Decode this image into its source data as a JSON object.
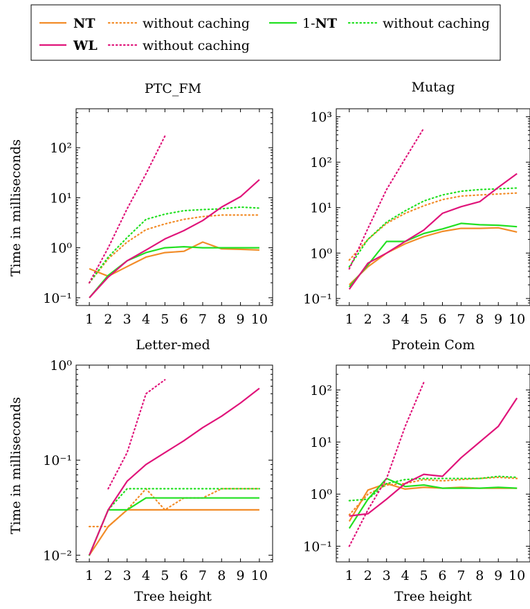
{
  "legend": {
    "entries": [
      {
        "label": "NT",
        "bold": true,
        "style": "solid",
        "color": "#f28c28"
      },
      {
        "label": "without caching",
        "bold": false,
        "style": "dotted",
        "color": "#f28c28"
      },
      {
        "label": "1-NT",
        "bold": false,
        "prefix": "1-",
        "bold_part": "NT",
        "style": "solid",
        "color": "#22e022"
      },
      {
        "label": "without caching",
        "bold": false,
        "style": "dotted",
        "color": "#22e022"
      },
      {
        "label": "WL",
        "bold": true,
        "style": "solid",
        "color": "#e0147a"
      },
      {
        "label": "without caching",
        "bold": false,
        "style": "dotted",
        "color": "#e0147a"
      }
    ]
  },
  "colors": {
    "NT": "#f28c28",
    "one_NT": "#22e022",
    "WL": "#e0147a"
  },
  "chart_data": [
    {
      "type": "line",
      "title": "PTC_FM",
      "xlabel": "",
      "ylabel": "Time in milliseconds",
      "yscale": "log",
      "ylim": [
        0.07,
        600
      ],
      "yticks": [
        {
          "value": 0.1,
          "label": "10⁻¹"
        },
        {
          "value": 1,
          "label": "10⁰"
        },
        {
          "value": 10,
          "label": "10¹"
        },
        {
          "value": 100,
          "label": "10²"
        }
      ],
      "xlim": [
        0.3,
        10.7
      ],
      "x": [
        1,
        2,
        3,
        4,
        5,
        6,
        7,
        8,
        9,
        10
      ],
      "series": [
        {
          "name": "NT",
          "style": "solid",
          "color": "#f28c28",
          "x": [
            1,
            2,
            3,
            4,
            5,
            6,
            7,
            8,
            9,
            10
          ],
          "values": [
            0.38,
            0.27,
            0.42,
            0.65,
            0.8,
            0.85,
            1.3,
            0.95,
            0.93,
            0.9
          ]
        },
        {
          "name": "without caching",
          "style": "dotted",
          "color": "#f28c28",
          "x": [
            1,
            2,
            3,
            4,
            5,
            6,
            7,
            8,
            9,
            10
          ],
          "values": [
            0.2,
            0.6,
            1.3,
            2.3,
            3.0,
            3.7,
            4.2,
            4.5,
            4.5,
            4.5
          ]
        },
        {
          "name": "1-NT",
          "style": "solid",
          "color": "#22e022",
          "x": [
            1,
            2,
            3,
            4,
            5,
            6,
            7,
            8,
            9,
            10
          ],
          "values": [
            0.1,
            0.28,
            0.55,
            0.8,
            1.0,
            1.05,
            1.0,
            1.0,
            1.0,
            1.0
          ]
        },
        {
          "name": "without caching",
          "style": "dotted",
          "color": "#22e022",
          "x": [
            1,
            2,
            3,
            4,
            5,
            6,
            7,
            8,
            9,
            10
          ],
          "values": [
            0.2,
            0.65,
            1.6,
            3.7,
            4.7,
            5.5,
            5.8,
            6.0,
            6.5,
            6.2
          ]
        },
        {
          "name": "WL",
          "style": "solid",
          "color": "#e0147a",
          "x": [
            1,
            2,
            3,
            4,
            5,
            6,
            7,
            8,
            9,
            10
          ],
          "values": [
            0.1,
            0.26,
            0.55,
            0.9,
            1.5,
            2.2,
            3.5,
            6.5,
            10.5,
            23
          ]
        },
        {
          "name": "without caching",
          "style": "dotted",
          "color": "#e0147a",
          "x": [
            1,
            2,
            3,
            4,
            5
          ],
          "values": [
            0.2,
            1.0,
            6.0,
            30,
            170
          ]
        }
      ]
    },
    {
      "type": "line",
      "title": "Mutag",
      "xlabel": "",
      "ylabel": "",
      "yscale": "log",
      "ylim": [
        0.07,
        1500
      ],
      "yticks": [
        {
          "value": 0.1,
          "label": "10⁻¹"
        },
        {
          "value": 1,
          "label": "10⁰"
        },
        {
          "value": 10,
          "label": "10¹"
        },
        {
          "value": 100,
          "label": "10²"
        },
        {
          "value": 1000,
          "label": "10³"
        }
      ],
      "xlim": [
        0.3,
        10.7
      ],
      "x": [
        1,
        2,
        3,
        4,
        5,
        6,
        7,
        8,
        9,
        10
      ],
      "series": [
        {
          "name": "NT",
          "style": "solid",
          "color": "#f28c28",
          "x": [
            1,
            2,
            3,
            4,
            5,
            6,
            7,
            8,
            9,
            10
          ],
          "values": [
            0.2,
            0.5,
            1.0,
            1.6,
            2.3,
            3.0,
            3.5,
            3.5,
            3.6,
            2.9
          ]
        },
        {
          "name": "without caching",
          "style": "dotted",
          "color": "#f28c28",
          "x": [
            1,
            2,
            3,
            4,
            5,
            6,
            7,
            8,
            9,
            10
          ],
          "values": [
            0.7,
            2.0,
            4.5,
            7.5,
            11,
            15,
            18,
            19,
            20,
            21
          ]
        },
        {
          "name": "1-NT",
          "style": "solid",
          "color": "#22e022",
          "x": [
            1,
            2,
            3,
            4,
            5,
            6,
            7,
            8,
            9,
            10
          ],
          "values": [
            0.18,
            0.55,
            1.8,
            1.8,
            2.7,
            3.4,
            4.5,
            4.2,
            4.1,
            3.8
          ]
        },
        {
          "name": "without caching",
          "style": "dotted",
          "color": "#22e022",
          "x": [
            1,
            2,
            3,
            4,
            5,
            6,
            7,
            8,
            9,
            10
          ],
          "values": [
            0.5,
            2.0,
            4.8,
            8.5,
            14,
            19,
            23,
            25,
            26,
            27
          ]
        },
        {
          "name": "WL",
          "style": "solid",
          "color": "#e0147a",
          "x": [
            1,
            2,
            3,
            4,
            5,
            6,
            7,
            8,
            9,
            10
          ],
          "values": [
            0.16,
            0.6,
            1.0,
            1.8,
            3.2,
            7.5,
            10.5,
            13.5,
            28,
            56
          ]
        },
        {
          "name": "without caching",
          "style": "dotted",
          "color": "#e0147a",
          "x": [
            1,
            2,
            3,
            4,
            5
          ],
          "values": [
            0.45,
            3.5,
            25,
            120,
            560
          ]
        }
      ]
    },
    {
      "type": "line",
      "title": "Letter-med",
      "xlabel": "Tree height",
      "ylabel": "Time in milliseconds",
      "yscale": "log",
      "ylim": [
        0.0085,
        1.0
      ],
      "yticks": [
        {
          "value": 0.01,
          "label": "10⁻²"
        },
        {
          "value": 0.1,
          "label": "10⁻¹"
        },
        {
          "value": 1,
          "label": "10⁰"
        }
      ],
      "xlim": [
        0.3,
        10.7
      ],
      "x": [
        1,
        2,
        3,
        4,
        5,
        6,
        7,
        8,
        9,
        10
      ],
      "series": [
        {
          "name": "NT",
          "style": "solid",
          "color": "#f28c28",
          "x": [
            1,
            2,
            3,
            4,
            5,
            6,
            7,
            8,
            9,
            10
          ],
          "values": [
            0.01,
            0.02,
            0.03,
            0.03,
            0.03,
            0.03,
            0.03,
            0.03,
            0.03,
            0.03
          ]
        },
        {
          "name": "without caching",
          "style": "dotted",
          "color": "#f28c28",
          "x": [
            1,
            2,
            3,
            4,
            5,
            6,
            7,
            8,
            9,
            10
          ],
          "values": [
            0.02,
            0.02,
            0.03,
            0.05,
            0.03,
            0.04,
            0.04,
            0.05,
            0.05,
            0.05
          ]
        },
        {
          "name": "1-NT",
          "style": "solid",
          "color": "#22e022",
          "x": [
            1,
            2,
            3,
            4,
            5,
            6,
            7,
            8,
            9,
            10
          ],
          "values": [
            0.01,
            0.03,
            0.03,
            0.04,
            0.04,
            0.04,
            0.04,
            0.04,
            0.04,
            0.04
          ]
        },
        {
          "name": "without caching",
          "style": "dotted",
          "color": "#22e022",
          "x": [
            1,
            2,
            3,
            4,
            5,
            6,
            7,
            8,
            9,
            10
          ],
          "values": [
            0.01,
            0.03,
            0.05,
            0.05,
            0.05,
            0.05,
            0.05,
            0.05,
            0.05,
            0.05
          ]
        },
        {
          "name": "WL",
          "style": "solid",
          "color": "#e0147a",
          "x": [
            1,
            2,
            3,
            4,
            5,
            6,
            7,
            8,
            9,
            10
          ],
          "values": [
            0.01,
            0.03,
            0.06,
            0.09,
            0.12,
            0.16,
            0.22,
            0.29,
            0.4,
            0.57
          ]
        },
        {
          "name": "without caching",
          "style": "dotted",
          "color": "#e0147a",
          "x": [
            2,
            3,
            4,
            5
          ],
          "values": [
            0.05,
            0.12,
            0.5,
            0.7
          ]
        }
      ]
    },
    {
      "type": "line",
      "title": "Protein Com",
      "xlabel": "Tree height",
      "ylabel": "",
      "yscale": "log",
      "ylim": [
        0.05,
        300
      ],
      "yticks": [
        {
          "value": 0.1,
          "label": "10⁻¹"
        },
        {
          "value": 1,
          "label": "10⁰"
        },
        {
          "value": 10,
          "label": "10¹"
        },
        {
          "value": 100,
          "label": "10²"
        }
      ],
      "xlim": [
        0.3,
        10.7
      ],
      "x": [
        1,
        2,
        3,
        4,
        5,
        6,
        7,
        8,
        9,
        10
      ],
      "series": [
        {
          "name": "NT",
          "style": "solid",
          "color": "#f28c28",
          "x": [
            1,
            2,
            3,
            4,
            5,
            6,
            7,
            8,
            9,
            10
          ],
          "values": [
            0.3,
            1.2,
            1.6,
            1.25,
            1.35,
            1.3,
            1.35,
            1.3,
            1.3,
            1.3
          ]
        },
        {
          "name": "without caching",
          "style": "dotted",
          "color": "#f28c28",
          "x": [
            1,
            2,
            3,
            4,
            5,
            6,
            7,
            8,
            9,
            10
          ],
          "values": [
            0.4,
            1.0,
            1.5,
            1.6,
            1.9,
            1.8,
            1.9,
            2.0,
            2.1,
            2.0
          ]
        },
        {
          "name": "1-NT",
          "style": "solid",
          "color": "#22e022",
          "x": [
            1,
            2,
            3,
            4,
            5,
            6,
            7,
            8,
            9,
            10
          ],
          "values": [
            0.22,
            0.8,
            2.0,
            1.4,
            1.5,
            1.3,
            1.3,
            1.3,
            1.35,
            1.3
          ]
        },
        {
          "name": "without caching",
          "style": "dotted",
          "color": "#22e022",
          "x": [
            1,
            2,
            3,
            4,
            5,
            6,
            7,
            8,
            9,
            10
          ],
          "values": [
            0.75,
            0.8,
            1.6,
            1.9,
            2.0,
            2.0,
            2.0,
            2.0,
            2.2,
            2.1
          ]
        },
        {
          "name": "WL",
          "style": "solid",
          "color": "#e0147a",
          "x": [
            1,
            2,
            3,
            4,
            5,
            6,
            7,
            8,
            9,
            10
          ],
          "values": [
            0.38,
            0.42,
            0.8,
            1.6,
            2.4,
            2.2,
            5.0,
            10,
            20,
            70
          ]
        },
        {
          "name": "without caching",
          "style": "dotted",
          "color": "#e0147a",
          "x": [
            1,
            2,
            3,
            4,
            5
          ],
          "values": [
            0.1,
            0.5,
            2.0,
            20,
            140
          ]
        }
      ]
    }
  ]
}
